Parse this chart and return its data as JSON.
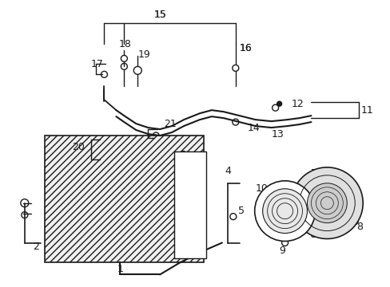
{
  "bg_color": "#ffffff",
  "figsize": [
    4.89,
    3.6
  ],
  "dpi": 100,
  "line_color": "#1a1a1a",
  "label_fontsize": 8.5
}
